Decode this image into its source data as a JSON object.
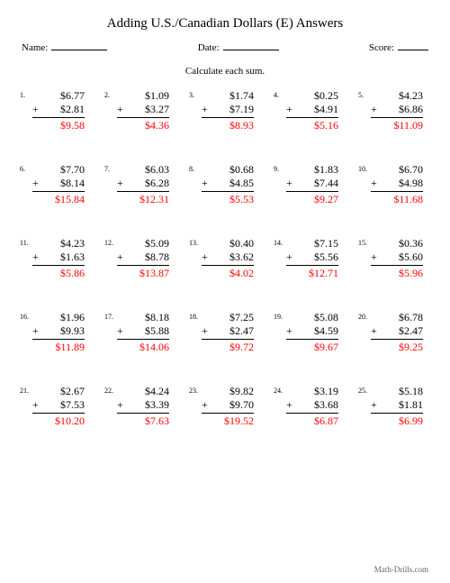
{
  "title": "Adding U.S./Canadian Dollars (E) Answers",
  "header": {
    "name_label": "Name:",
    "date_label": "Date:",
    "score_label": "Score:"
  },
  "instruction": "Calculate each sum.",
  "problems": [
    {
      "n": "1.",
      "a": "$6.77",
      "b": "$2.81",
      "ans": "$9.58"
    },
    {
      "n": "2.",
      "a": "$1.09",
      "b": "$3.27",
      "ans": "$4.36"
    },
    {
      "n": "3.",
      "a": "$1.74",
      "b": "$7.19",
      "ans": "$8.93"
    },
    {
      "n": "4.",
      "a": "$0.25",
      "b": "$4.91",
      "ans": "$5.16"
    },
    {
      "n": "5.",
      "a": "$4.23",
      "b": "$6.86",
      "ans": "$11.09"
    },
    {
      "n": "6.",
      "a": "$7.70",
      "b": "$8.14",
      "ans": "$15.84"
    },
    {
      "n": "7.",
      "a": "$6.03",
      "b": "$6.28",
      "ans": "$12.31"
    },
    {
      "n": "8.",
      "a": "$0.68",
      "b": "$4.85",
      "ans": "$5.53"
    },
    {
      "n": "9.",
      "a": "$1.83",
      "b": "$7.44",
      "ans": "$9.27"
    },
    {
      "n": "10.",
      "a": "$6.70",
      "b": "$4.98",
      "ans": "$11.68"
    },
    {
      "n": "11.",
      "a": "$4.23",
      "b": "$1.63",
      "ans": "$5.86"
    },
    {
      "n": "12.",
      "a": "$5.09",
      "b": "$8.78",
      "ans": "$13.87"
    },
    {
      "n": "13.",
      "a": "$0.40",
      "b": "$3.62",
      "ans": "$4.02"
    },
    {
      "n": "14.",
      "a": "$7.15",
      "b": "$5.56",
      "ans": "$12.71"
    },
    {
      "n": "15.",
      "a": "$0.36",
      "b": "$5.60",
      "ans": "$5.96"
    },
    {
      "n": "16.",
      "a": "$1.96",
      "b": "$9.93",
      "ans": "$11.89"
    },
    {
      "n": "17.",
      "a": "$8.18",
      "b": "$5.88",
      "ans": "$14.06"
    },
    {
      "n": "18.",
      "a": "$7.25",
      "b": "$2.47",
      "ans": "$9.72"
    },
    {
      "n": "19.",
      "a": "$5.08",
      "b": "$4.59",
      "ans": "$9.67"
    },
    {
      "n": "20.",
      "a": "$6.78",
      "b": "$2.47",
      "ans": "$9.25"
    },
    {
      "n": "21.",
      "a": "$2.67",
      "b": "$7.53",
      "ans": "$10.20"
    },
    {
      "n": "22.",
      "a": "$4.24",
      "b": "$3.39",
      "ans": "$7.63"
    },
    {
      "n": "23.",
      "a": "$9.82",
      "b": "$9.70",
      "ans": "$19.52"
    },
    {
      "n": "24.",
      "a": "$3.19",
      "b": "$3.68",
      "ans": "$6.87"
    },
    {
      "n": "25.",
      "a": "$5.18",
      "b": "$1.81",
      "ans": "$6.99"
    }
  ],
  "plus": "+",
  "footer": "Math-Drills.com",
  "colors": {
    "answer": "#ff0000",
    "text": "#000000",
    "background": "#ffffff"
  }
}
